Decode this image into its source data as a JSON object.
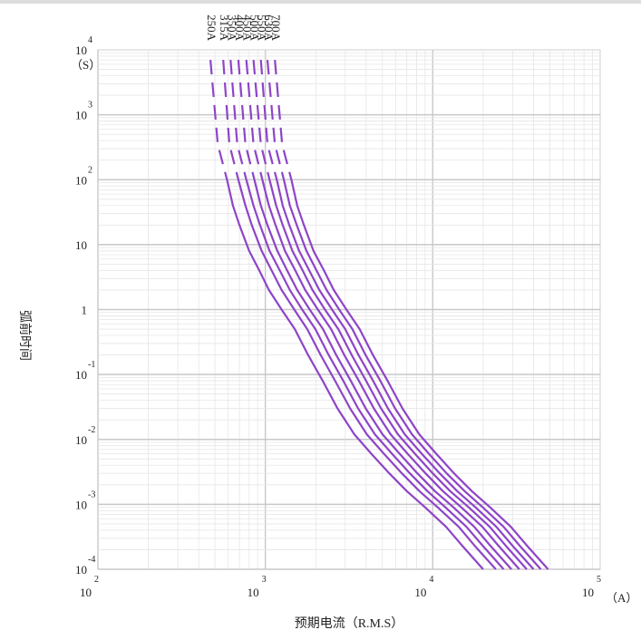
{
  "chart_data": {
    "type": "line",
    "xscale": "log",
    "yscale": "log",
    "xlim": [
      100,
      100000
    ],
    "ylim": [
      0.0001,
      10000
    ],
    "grid": true,
    "legend": "curve labels along top of each curve",
    "line_color": "#8e44c8",
    "xlabel": "预期电流（R.M.S）",
    "ylabel": "弧前时间",
    "x_unit": "（A）",
    "y_unit": "（S）",
    "x_ticks": [
      {
        "base": "10",
        "exp": "2"
      },
      {
        "base": "10",
        "exp": "3"
      },
      {
        "base": "10",
        "exp": "4"
      },
      {
        "base": "10",
        "exp": "5"
      }
    ],
    "y_ticks": [
      {
        "base": "10",
        "exp": "4"
      },
      {
        "base": "10",
        "exp": "3"
      },
      {
        "base": "10",
        "exp": "2"
      },
      {
        "base": "10",
        "exp": ""
      },
      {
        "base": "1",
        "exp": ""
      },
      {
        "base": "10",
        "exp": "-1"
      },
      {
        "base": "10",
        "exp": "-2"
      },
      {
        "base": "10",
        "exp": "-3"
      },
      {
        "base": "10",
        "exp": "-4"
      }
    ],
    "series": [
      {
        "name": "250A",
        "x": [
          470,
          520,
          590,
          640,
          700,
          800,
          920,
          1050,
          1250,
          1500,
          1800,
          2200,
          2700,
          3400,
          4300,
          5500,
          7000,
          9000,
          12000,
          15000,
          20000
        ],
        "y": [
          7000,
          350,
          100,
          40,
          20,
          8,
          4,
          2,
          1,
          0.5,
          0.2,
          0.08,
          0.03,
          0.012,
          0.006,
          0.003,
          0.0016,
          0.0009,
          0.00045,
          0.00023,
          0.0001
        ]
      },
      {
        "name": "315A",
        "x": [
          560,
          610,
          690,
          760,
          830,
          950,
          1090,
          1250,
          1490,
          1780,
          2140,
          2610,
          3210,
          4040,
          5110,
          6540,
          8320,
          10700,
          14300,
          17800,
          23800
        ],
        "y": [
          7000,
          350,
          100,
          40,
          20,
          8,
          4,
          2,
          1,
          0.5,
          0.2,
          0.08,
          0.03,
          0.012,
          0.006,
          0.003,
          0.0016,
          0.0009,
          0.00045,
          0.00023,
          0.0001
        ]
      },
      {
        "name": "350A",
        "x": [
          620,
          680,
          770,
          850,
          930,
          1060,
          1220,
          1400,
          1660,
          1990,
          2390,
          2920,
          3580,
          4510,
          5710,
          7300,
          9290,
          11900,
          15900,
          19900,
          26500
        ],
        "y": [
          7000,
          350,
          100,
          40,
          20,
          8,
          4,
          2,
          1,
          0.5,
          0.2,
          0.08,
          0.03,
          0.012,
          0.006,
          0.003,
          0.0016,
          0.0009,
          0.00045,
          0.00023,
          0.0001
        ]
      },
      {
        "name": "400A",
        "x": [
          690,
          760,
          860,
          940,
          1030,
          1180,
          1350,
          1550,
          1840,
          2210,
          2650,
          3240,
          3980,
          5010,
          6340,
          8100,
          10300,
          13300,
          17700,
          22100,
          29500
        ],
        "y": [
          7000,
          350,
          100,
          40,
          20,
          8,
          4,
          2,
          1,
          0.5,
          0.2,
          0.08,
          0.03,
          0.012,
          0.006,
          0.003,
          0.0016,
          0.0009,
          0.00045,
          0.00023,
          0.0001
        ]
      },
      {
        "name": "450A",
        "x": [
          770,
          850,
          960,
          1050,
          1150,
          1310,
          1510,
          1730,
          2060,
          2470,
          2960,
          3620,
          4450,
          5600,
          7080,
          9060,
          11500,
          14800,
          19800,
          24700,
          32900
        ],
        "y": [
          7000,
          350,
          100,
          40,
          20,
          8,
          4,
          2,
          1,
          0.5,
          0.2,
          0.08,
          0.03,
          0.012,
          0.006,
          0.003,
          0.0016,
          0.0009,
          0.00045,
          0.00023,
          0.0001
        ]
      },
      {
        "name": "500A",
        "x": [
          850,
          940,
          1060,
          1160,
          1270,
          1450,
          1670,
          1910,
          2270,
          2730,
          3280,
          4000,
          4910,
          6190,
          7830,
          10000,
          12700,
          16400,
          21900,
          27300,
          36400
        ],
        "y": [
          7000,
          350,
          100,
          40,
          20,
          8,
          4,
          2,
          1,
          0.5,
          0.2,
          0.08,
          0.03,
          0.012,
          0.006,
          0.003,
          0.0016,
          0.0009,
          0.00045,
          0.00023,
          0.0001
        ]
      },
      {
        "name": "550A",
        "x": [
          940,
          1030,
          1170,
          1270,
          1390,
          1590,
          1830,
          2100,
          2500,
          3000,
          3600,
          4400,
          5400,
          6800,
          8600,
          11000,
          14000,
          18000,
          24000,
          30000,
          40000
        ],
        "y": [
          7000,
          350,
          100,
          40,
          20,
          8,
          4,
          2,
          1,
          0.5,
          0.2,
          0.08,
          0.03,
          0.012,
          0.006,
          0.003,
          0.0016,
          0.0009,
          0.00045,
          0.00023,
          0.0001
        ]
      },
      {
        "name": "630A",
        "x": [
          1030,
          1140,
          1290,
          1400,
          1540,
          1760,
          2020,
          2320,
          2760,
          3310,
          3970,
          4860,
          5960,
          7510,
          9490,
          12100,
          15500,
          19900,
          26500,
          33100,
          44200
        ],
        "y": [
          7000,
          350,
          100,
          40,
          20,
          8,
          4,
          2,
          1,
          0.5,
          0.2,
          0.08,
          0.03,
          0.012,
          0.006,
          0.003,
          0.0016,
          0.0009,
          0.00045,
          0.00023,
          0.0001
        ]
      },
      {
        "name": "700A",
        "x": [
          1140,
          1260,
          1430,
          1550,
          1700,
          1940,
          2240,
          2560,
          3050,
          3660,
          4390,
          5370,
          6590,
          8300,
          10500,
          13400,
          17100,
          22000,
          29300,
          36600,
          48800
        ],
        "y": [
          7000,
          350,
          100,
          40,
          20,
          8,
          4,
          2,
          1,
          0.5,
          0.2,
          0.08,
          0.03,
          0.012,
          0.006,
          0.003,
          0.0016,
          0.0009,
          0.00045,
          0.00023,
          0.0001
        ]
      }
    ]
  }
}
